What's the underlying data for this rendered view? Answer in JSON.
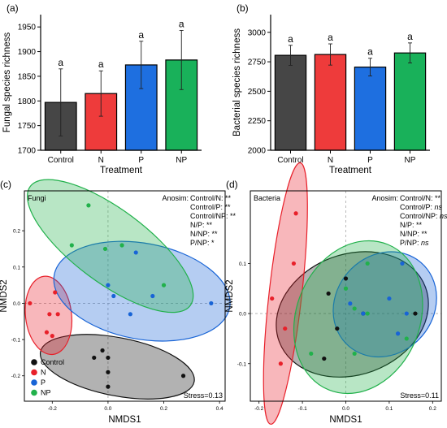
{
  "chart_data": [
    {
      "panel": "(a)",
      "type": "bar",
      "categories": [
        "Control",
        "N",
        "P",
        "NP"
      ],
      "values": [
        1797,
        1815,
        1873,
        1883
      ],
      "errors": [
        68,
        46,
        48,
        60
      ],
      "significance": [
        "a",
        "a",
        "a",
        "a"
      ],
      "colors": [
        "#464646",
        "#ee3b3b",
        "#1e6fe0",
        "#19b15a"
      ],
      "xlabel": "Treatment",
      "ylabel": "Fungal species richness",
      "ylim": [
        1700,
        1975
      ],
      "yticks": [
        1700,
        1750,
        1800,
        1850,
        1900,
        1950
      ]
    },
    {
      "panel": "(b)",
      "type": "bar",
      "categories": [
        "Control",
        "N",
        "P",
        "NP"
      ],
      "values": [
        2805,
        2812,
        2705,
        2825
      ],
      "errors": [
        85,
        90,
        75,
        85
      ],
      "significance": [
        "a",
        "a",
        "a",
        "a"
      ],
      "colors": [
        "#464646",
        "#ee3b3b",
        "#1e6fe0",
        "#19b15a"
      ],
      "xlabel": "Treatment",
      "ylabel": "Bacterial species richness",
      "ylim": [
        2000,
        3150
      ],
      "yticks": [
        2000,
        2250,
        2500,
        2750,
        3000
      ]
    },
    {
      "panel": "(c)",
      "type": "scatter",
      "subtitle": "Fungi",
      "xlabel": "NMDS1",
      "ylabel": "NMDS2",
      "xlim": [
        -0.3,
        0.42
      ],
      "ylim": [
        -0.27,
        0.31
      ],
      "xticks": [
        -0.2,
        0.0,
        0.2,
        0.4
      ],
      "xtick_labels": [
        "-0.2",
        "0.0",
        "0.2",
        "0.4"
      ],
      "yticks": [
        -0.2,
        -0.1,
        0.0,
        0.1,
        0.2
      ],
      "ytick_labels": [
        "-0.2",
        "-0.1",
        "0.0",
        "0.1",
        "0.2"
      ],
      "stress": "Stress=0.13",
      "anosim_label": "Anosim:",
      "anosim": [
        {
          "pair": "Control/N:",
          "sig": "**"
        },
        {
          "pair": "Control/P:",
          "sig": "**"
        },
        {
          "pair": "Control/NP:",
          "sig": "**"
        },
        {
          "pair": "N/P:",
          "sig": "**"
        },
        {
          "pair": "N/NP:",
          "sig": "**"
        },
        {
          "pair": "P/NP:",
          "sig": "*"
        }
      ],
      "legend": [
        "Control",
        "N",
        "P",
        "NP"
      ],
      "series": [
        {
          "name": "Control",
          "color": "#111111",
          "points": [
            [
              -0.02,
              -0.13
            ],
            [
              0.0,
              -0.19
            ],
            [
              -0.05,
              -0.15
            ],
            [
              0.0,
              -0.15
            ],
            [
              0.0,
              -0.23
            ],
            [
              0.27,
              -0.2
            ]
          ]
        },
        {
          "name": "N",
          "color": "#e8202a",
          "points": [
            [
              -0.28,
              0.0
            ],
            [
              -0.22,
              -0.08
            ],
            [
              -0.2,
              -0.09
            ],
            [
              -0.21,
              -0.03
            ],
            [
              -0.18,
              -0.03
            ],
            [
              -0.19,
              0.03
            ]
          ]
        },
        {
          "name": "P",
          "color": "#1864d6",
          "points": [
            [
              0.0,
              0.05
            ],
            [
              0.1,
              0.14
            ],
            [
              0.08,
              -0.03
            ],
            [
              0.16,
              0.02
            ],
            [
              0.37,
              0.0
            ],
            [
              0.02,
              0.02
            ]
          ]
        },
        {
          "name": "NP",
          "color": "#21b14b",
          "points": [
            [
              -0.07,
              0.27
            ],
            [
              -0.13,
              0.16
            ],
            [
              0.05,
              0.16
            ],
            [
              -0.01,
              0.15
            ],
            [
              0.2,
              0.05
            ]
          ]
        }
      ]
    },
    {
      "panel": "(d)",
      "type": "scatter",
      "subtitle": "Bacteria",
      "xlabel": "NMDS1",
      "ylabel": "NMDS2",
      "xlim": [
        -0.22,
        0.22
      ],
      "ylim": [
        -0.175,
        0.245
      ],
      "xticks": [
        -0.2,
        -0.1,
        0.0,
        0.1,
        0.2
      ],
      "xtick_labels": [
        "-0.2",
        "-0.1",
        "0.0",
        "0.1",
        "0.2"
      ],
      "yticks": [
        -0.1,
        0.0,
        0.1
      ],
      "ytick_labels": [
        "-0.1",
        "0.0",
        "0.1"
      ],
      "stress": "Stress=0.11",
      "anosim_label": "Anosim:",
      "anosim": [
        {
          "pair": "Control/N:",
          "sig": "**"
        },
        {
          "pair": "Control/P:",
          "sig": "ns"
        },
        {
          "pair": "Control/NP:",
          "sig": "ns"
        },
        {
          "pair": "N/P:",
          "sig": "**"
        },
        {
          "pair": "N/NP:",
          "sig": "**"
        },
        {
          "pair": "P/NP:",
          "sig": "ns"
        }
      ],
      "series": [
        {
          "name": "Control",
          "color": "#111111",
          "points": [
            [
              0.0,
              0.07
            ],
            [
              -0.02,
              -0.03
            ],
            [
              -0.04,
              0.04
            ],
            [
              -0.05,
              -0.09
            ],
            [
              0.04,
              0.0
            ],
            [
              0.16,
              0.0
            ]
          ]
        },
        {
          "name": "N",
          "color": "#e8202a",
          "points": [
            [
              -0.115,
              0.2
            ],
            [
              -0.12,
              0.1
            ],
            [
              -0.17,
              0.03
            ],
            [
              -0.14,
              -0.03
            ],
            [
              -0.15,
              -0.1
            ]
          ]
        },
        {
          "name": "P",
          "color": "#1864d6",
          "points": [
            [
              0.01,
              0.02
            ],
            [
              0.13,
              0.1
            ],
            [
              0.04,
              0.0
            ],
            [
              0.1,
              0.03
            ],
            [
              0.12,
              -0.04
            ],
            [
              0.14,
              0.0
            ]
          ]
        },
        {
          "name": "NP",
          "color": "#21b14b",
          "points": [
            [
              -0.08,
              -0.08
            ],
            [
              0.0,
              0.05
            ],
            [
              0.05,
              0.0
            ],
            [
              0.05,
              0.1
            ],
            [
              0.02,
              0.01
            ],
            [
              0.02,
              -0.08
            ],
            [
              0.14,
              -0.05
            ]
          ]
        }
      ]
    }
  ]
}
